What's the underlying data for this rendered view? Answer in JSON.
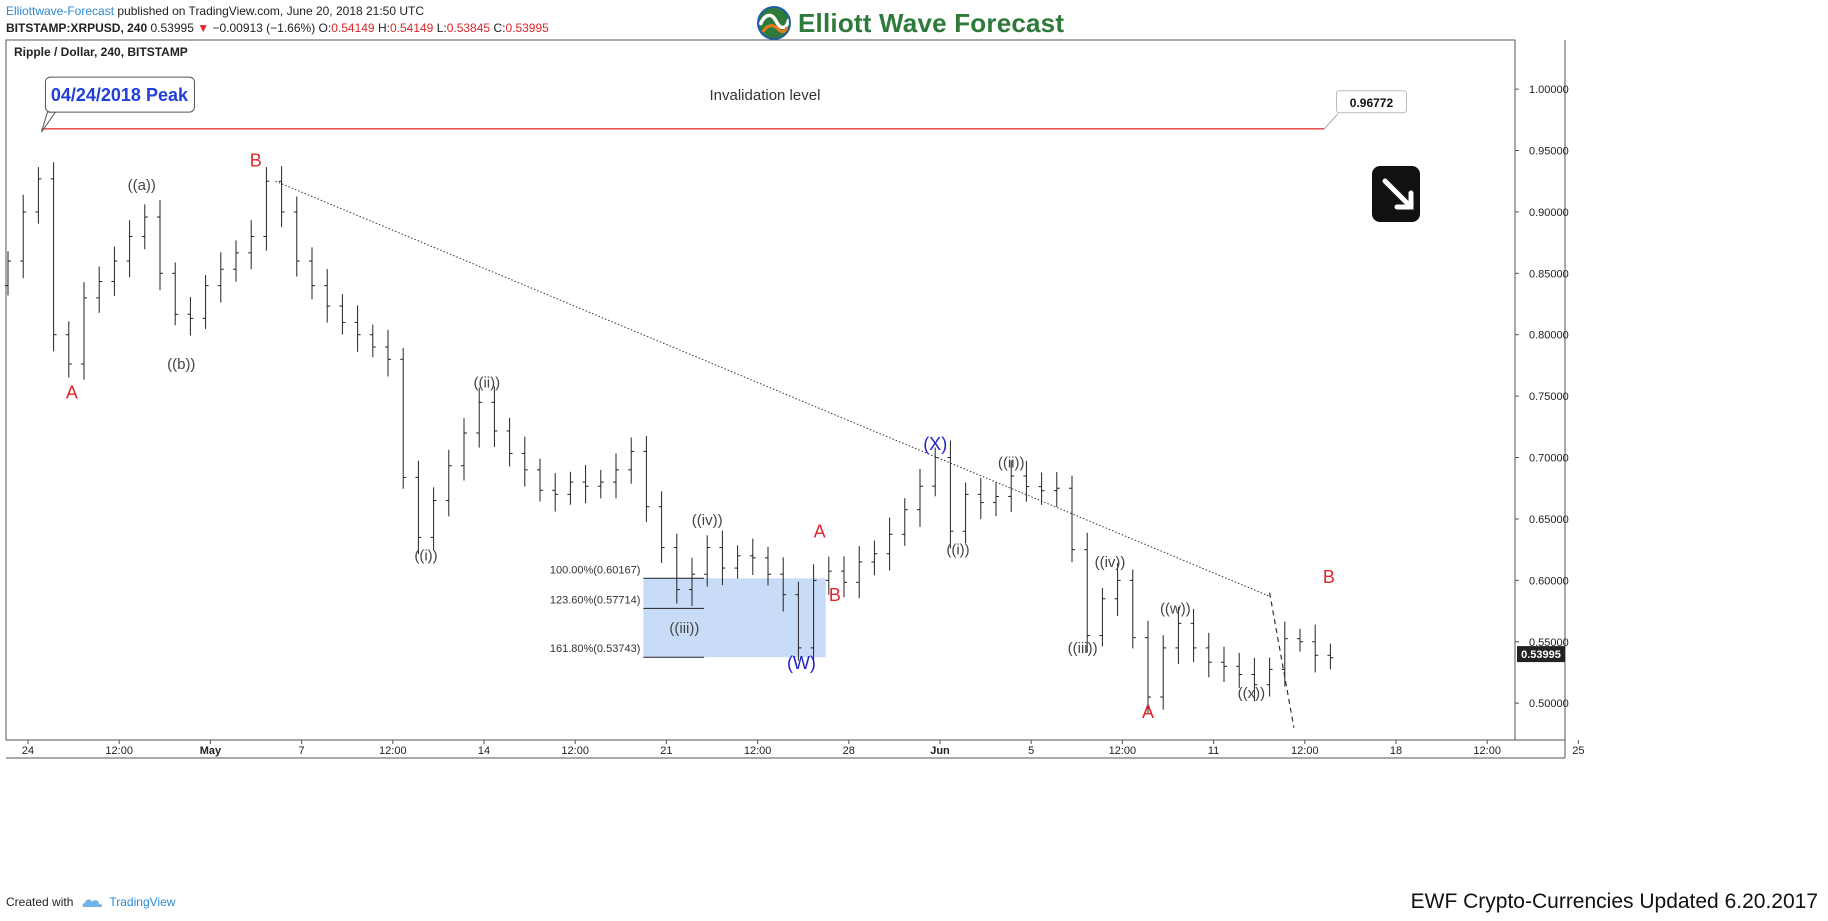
{
  "header": {
    "publisher": "Elliottwave-Forecast",
    "published_text": " published on TradingView.com, June 20, 2018 21:50 UTC",
    "symbol": "BITSTAMP:XRPUSD, 240",
    "last": "0.53995",
    "change_arrow": "▼",
    "change": "−0.00913 (−1.66%)",
    "o_label": "O:",
    "o": "0.54149",
    "h_label": "H:",
    "h": "0.54149",
    "l_label": "L:",
    "l": "0.53845",
    "c_label": "C:",
    "c": "0.53995",
    "brand": "Elliott Wave Forecast",
    "brand_icon": "elliott-wave-globe-logo"
  },
  "footer": {
    "created_with": "Created with",
    "tradingview": "TradingView",
    "tradingview_icon": "tradingview-cloud-logo",
    "update_note": "EWF Crypto-Currencies Updated 6.20.2017"
  },
  "colors": {
    "bar": "#222222",
    "wave_red": "#e0262b",
    "wave_blue": "#2222cc",
    "wave_gray": "#444444",
    "invalidation": "#e53935",
    "target_box": "#c9dcf7",
    "peak_label": "#1f3fd8",
    "brand_green": "#2e7a3a"
  },
  "chart_data": {
    "type": "candlestick",
    "title": "Ripple / Dollar, 240, BITSTAMP",
    "ylim": [
      0.47,
      1.04
    ],
    "y_ticks": [
      "1.00000",
      "0.95000",
      "0.90000",
      "0.85000",
      "0.80000",
      "0.75000",
      "0.70000",
      "0.65000",
      "0.60000",
      "0.55000",
      "0.50000"
    ],
    "x_ticks": [
      "24",
      "12:00",
      "May",
      "7",
      "12:00",
      "14",
      "12:00",
      "21",
      "12:00",
      "28",
      "Jun",
      "5",
      "12:00",
      "11",
      "12:00",
      "18",
      "12:00",
      "25"
    ],
    "last_price_label": "0.53995",
    "price_path": [
      [
        0.0,
        0.84
      ],
      [
        1.5,
        0.9
      ],
      [
        2.2,
        0.965
      ],
      [
        3.5,
        0.8
      ],
      [
        4.2,
        0.76
      ],
      [
        5.5,
        0.83
      ],
      [
        7.0,
        0.85
      ],
      [
        8.5,
        0.88
      ],
      [
        9.3,
        0.905
      ],
      [
        10.5,
        0.85
      ],
      [
        12.0,
        0.8
      ],
      [
        13.5,
        0.84
      ],
      [
        15.0,
        0.86
      ],
      [
        16.5,
        0.88
      ],
      [
        17.5,
        0.925
      ],
      [
        18.5,
        0.9
      ],
      [
        19.5,
        0.86
      ],
      [
        21.0,
        0.83
      ],
      [
        22.5,
        0.81
      ],
      [
        24.0,
        0.795
      ],
      [
        25.5,
        0.78
      ],
      [
        26.8,
        0.655
      ],
      [
        27.5,
        0.635
      ],
      [
        29.0,
        0.68
      ],
      [
        30.5,
        0.72
      ],
      [
        31.5,
        0.745
      ],
      [
        33.0,
        0.71
      ],
      [
        34.5,
        0.69
      ],
      [
        36.0,
        0.665
      ],
      [
        37.5,
        0.68
      ],
      [
        39.0,
        0.675
      ],
      [
        40.5,
        0.69
      ],
      [
        41.5,
        0.705
      ],
      [
        42.5,
        0.66
      ],
      [
        44.0,
        0.61
      ],
      [
        45.0,
        0.575
      ],
      [
        46.0,
        0.635
      ],
      [
        47.5,
        0.61
      ],
      [
        49.0,
        0.625
      ],
      [
        50.5,
        0.605
      ],
      [
        51.7,
        0.585
      ],
      [
        52.5,
        0.545
      ],
      [
        53.5,
        0.6
      ],
      [
        54.0,
        0.625
      ],
      [
        55.0,
        0.59
      ],
      [
        56.5,
        0.615
      ],
      [
        58.0,
        0.625
      ],
      [
        59.0,
        0.65
      ],
      [
        60.0,
        0.665
      ],
      [
        61.5,
        0.7
      ],
      [
        62.5,
        0.64
      ],
      [
        63.5,
        0.67
      ],
      [
        65.0,
        0.66
      ],
      [
        66.5,
        0.685
      ],
      [
        68.0,
        0.672
      ],
      [
        69.5,
        0.675
      ],
      [
        70.5,
        0.625
      ],
      [
        71.5,
        0.555
      ],
      [
        72.5,
        0.585
      ],
      [
        73.5,
        0.6
      ],
      [
        75.0,
        0.53
      ],
      [
        75.5,
        0.505
      ],
      [
        76.5,
        0.545
      ],
      [
        77.5,
        0.565
      ],
      [
        79.0,
        0.535
      ],
      [
        80.5,
        0.53
      ],
      [
        82.0,
        0.52
      ],
      [
        83.0,
        0.51
      ],
      [
        84.0,
        0.545
      ],
      [
        85.0,
        0.56
      ],
      [
        86.0,
        0.54
      ],
      [
        87.5,
        0.537
      ]
    ],
    "bar_count": 88,
    "invalidation": {
      "value": 0.96772,
      "label": "0.96772",
      "text": "Invalidation level"
    },
    "peak_note": "04/24/2018 Peak",
    "target_zone": [
      {
        "label": "100.00%(0.60167)",
        "value": 0.60167
      },
      {
        "label": "123.60%(0.57714)",
        "value": 0.57714
      },
      {
        "label": "161.80%(0.53743)",
        "value": 0.53743
      }
    ],
    "trendline": {
      "from": [
        17.6,
        0.925
      ],
      "to": [
        83.0,
        0.587
      ],
      "style": "dotted"
    },
    "projection": {
      "from": [
        83.0,
        0.59
      ],
      "to": [
        84.6,
        0.48
      ],
      "style": "dashed"
    },
    "waves": [
      {
        "text": "A",
        "x": 4.2,
        "value": 0.748,
        "color": "red"
      },
      {
        "text": "((a))",
        "x": 8.8,
        "value": 0.918,
        "color": "gray"
      },
      {
        "text": "((b))",
        "x": 11.4,
        "value": 0.772,
        "color": "gray"
      },
      {
        "text": "B",
        "x": 16.3,
        "value": 0.937,
        "color": "red"
      },
      {
        "text": "((i))",
        "x": 27.5,
        "value": 0.616,
        "color": "gray"
      },
      {
        "text": "((ii))",
        "x": 31.5,
        "value": 0.757,
        "color": "gray"
      },
      {
        "text": "((iv))",
        "x": 46.0,
        "value": 0.645,
        "color": "gray"
      },
      {
        "text": "((iii))",
        "x": 44.5,
        "value": 0.557,
        "color": "gray"
      },
      {
        "text": "A",
        "x": 53.4,
        "value": 0.635,
        "color": "red"
      },
      {
        "text": "B",
        "x": 54.4,
        "value": 0.583,
        "color": "red"
      },
      {
        "text": "(W)",
        "x": 52.2,
        "value": 0.528,
        "color": "blue"
      },
      {
        "text": "(X)",
        "x": 61.0,
        "value": 0.706,
        "color": "blue"
      },
      {
        "text": "((ii))",
        "x": 66.0,
        "value": 0.692,
        "color": "gray"
      },
      {
        "text": "((i))",
        "x": 62.5,
        "value": 0.621,
        "color": "gray"
      },
      {
        "text": "((iv))",
        "x": 72.5,
        "value": 0.611,
        "color": "gray"
      },
      {
        "text": "((iii))",
        "x": 70.7,
        "value": 0.541,
        "color": "gray"
      },
      {
        "text": "((w))",
        "x": 76.8,
        "value": 0.573,
        "color": "gray"
      },
      {
        "text": "A",
        "x": 75.0,
        "value": 0.488,
        "color": "red"
      },
      {
        "text": "((x))",
        "x": 81.8,
        "value": 0.504,
        "color": "gray"
      },
      {
        "text": "B",
        "x": 86.9,
        "value": 0.598,
        "color": "red"
      }
    ],
    "signal_icon": "arrow-down-right-icon"
  }
}
